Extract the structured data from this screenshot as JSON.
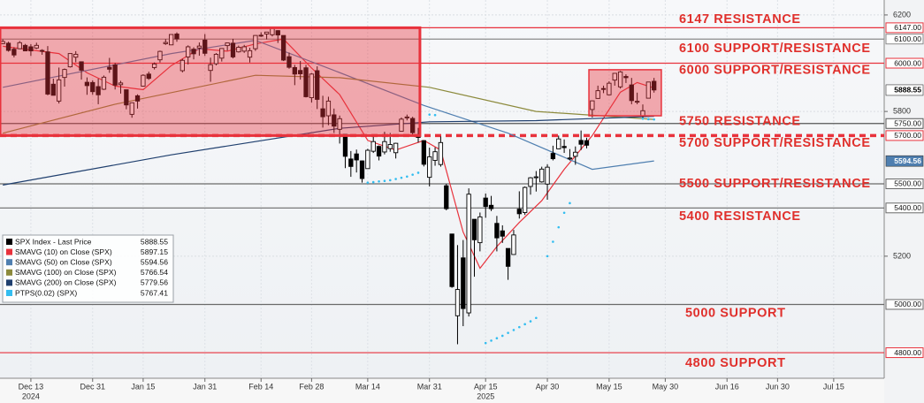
{
  "chart_data": {
    "type": "candlestick",
    "xlim": [
      -0.5,
      157
    ],
    "ylim": [
      4694,
      6262
    ],
    "yticks": [
      5200,
      5800,
      6200
    ],
    "xticks": [
      {
        "value": 5,
        "label": "Dec 13"
      },
      {
        "value": 16,
        "label": "Dec 31"
      },
      {
        "value": 25,
        "label": "Jan 15"
      },
      {
        "value": 36,
        "label": "Jan 31"
      },
      {
        "value": 46,
        "label": "Feb 14"
      },
      {
        "value": 55,
        "label": "Feb 28"
      },
      {
        "value": 65,
        "label": "Mar 14"
      },
      {
        "value": 76,
        "label": "Mar 31"
      },
      {
        "value": 86,
        "label": "Apr 15"
      },
      {
        "value": 97,
        "label": "Apr 30"
      },
      {
        "value": 108,
        "label": "May 15"
      },
      {
        "value": 118,
        "label": "May 30"
      },
      {
        "value": 129,
        "label": "Jun 16"
      },
      {
        "value": 138,
        "label": "Jun 30"
      },
      {
        "value": 148,
        "label": "Jul 15"
      }
    ],
    "year_labels": [
      {
        "value": 5,
        "label": "2024"
      },
      {
        "value": 86,
        "label": "2025"
      }
    ],
    "grid": true,
    "candles": {
      "name": "SPX Index - Last Price",
      "color": "#000000",
      "last": 5888.55,
      "open": [
        6081,
        6083,
        6058,
        6060,
        6074,
        6068,
        6063,
        6053,
        6047,
        5913,
        5843,
        5941,
        5985,
        6025,
        6006,
        5921,
        5920,
        5903,
        5892,
        5983,
        5993,
        5911,
        5890,
        5788,
        5865,
        5905,
        5955,
        5982,
        6014,
        6081,
        6076,
        6121,
        5969,
        6026,
        6058,
        6063,
        6096,
        5970,
        5998,
        6021,
        6073,
        6083,
        6047,
        6050,
        6025,
        6060,
        6116,
        6121,
        6118,
        6135,
        6115,
        6027,
        5982,
        5970,
        5981,
        5857,
        5969,
        5811,
        5782,
        5786,
        5726,
        5705,
        5603,
        5624,
        5595,
        5563,
        5635,
        5655,
        5632,
        5646,
        5629,
        5718,
        5776,
        5771,
        5696,
        5679,
        5527,
        5597,
        5580,
        5492,
        5292,
        4953,
        5193,
        4965,
        5353,
        5256,
        5441,
        5411,
        5336,
        5305,
        5232,
        5207,
        5395,
        5381,
        5489,
        5529,
        5508,
        5499,
        5626,
        5645,
        5655,
        5606,
        5614,
        5680,
        5679,
        5808,
        5854,
        5895,
        5869,
        5930,
        5902,
        5945,
        5910,
        5841,
        5782,
        5855,
        5925
      ],
      "high": [
        6099,
        6089,
        6066,
        6092,
        6080,
        6079,
        6085,
        6058,
        6071,
        5936,
        5982,
        5978,
        6041,
        6050,
        6007,
        5941,
        5929,
        5936,
        5949,
        6022,
        6001,
        5927,
        5890,
        5837,
        5871,
        5954,
        5965,
        6003,
        6052,
        6100,
        6119,
        6128,
        6018,
        6074,
        6066,
        6086,
        6121,
        6023,
        6042,
        6062,
        6084,
        6101,
        6073,
        6076,
        6064,
        6116,
        6128,
        6129,
        6147,
        6137,
        6115,
        6044,
        5993,
        6009,
        5993,
        5959,
        5987,
        5865,
        5861,
        5812,
        5783,
        5705,
        5636,
        5642,
        5597,
        5645,
        5704,
        5659,
        5716,
        5711,
        5670,
        5775,
        5787,
        5778,
        5732,
        5679,
        5650,
        5651,
        5696,
        5500,
        5292,
        5246,
        5267,
        5481,
        5353,
        5381,
        5460,
        5450,
        5367,
        5328,
        5232,
        5309,
        5469,
        5489,
        5528,
        5553,
        5571,
        5581,
        5658,
        5700,
        5684,
        5644,
        5655,
        5721,
        5691,
        5845,
        5907,
        5907,
        5925,
        5959,
        5968,
        5954,
        5939,
        5878,
        5829,
        5922,
        5939
      ],
      "low": [
        6079,
        6048,
        6024,
        6058,
        6051,
        6030,
        6059,
        6035,
        5867,
        5866,
        5833,
        5903,
        5982,
        6004,
        5932,
        5869,
        5869,
        5830,
        5889,
        5960,
        5891,
        5874,
        5809,
        5774,
        5812,
        5903,
        5931,
        5974,
        6003,
        6076,
        6075,
        6089,
        5962,
        5995,
        6016,
        6031,
        6030,
        5923,
        5991,
        6007,
        6052,
        6020,
        6044,
        6043,
        6003,
        6051,
        6109,
        6099,
        6111,
        6084,
        6009,
        5977,
        5909,
        5932,
        5858,
        5837,
        5810,
        5733,
        5743,
        5711,
        5667,
        5565,
        5529,
        5547,
        5505,
        5563,
        5628,
        5597,
        5622,
        5633,
        5605,
        5718,
        5763,
        5698,
        5671,
        5572,
        5489,
        5575,
        5571,
        5390,
        5069,
        4835,
        4910,
        4950,
        5115,
        5220,
        5359,
        5387,
        5220,
        5255,
        5102,
        5207,
        5356,
        5371,
        5455,
        5468,
        5505,
        5434,
        5597,
        5644,
        5628,
        5597,
        5579,
        5640,
        5647,
        5775,
        5853,
        5876,
        5867,
        5907,
        5895,
        5918,
        5830,
        5830,
        5768,
        5855,
        5878
      ],
      "close": [
        6090,
        6053,
        6034,
        6085,
        6051,
        6051,
        6074,
        6050,
        5872,
        5867,
        5931,
        5974,
        6040,
        6037,
        5971,
        5907,
        5882,
        5869,
        5942,
        5975,
        5909,
        5918,
        5827,
        5836,
        5843,
        5950,
        5937,
        5997,
        6049,
        6086,
        6119,
        6101,
        6012,
        6068,
        6039,
        6071,
        6041,
        5994,
        6037,
        6061,
        6084,
        6026,
        6066,
        6068,
        6052,
        6115,
        6115,
        6129,
        6144,
        6117,
        6013,
        5983,
        5955,
        5956,
        5861,
        5955,
        5850,
        5778,
        5843,
        5739,
        5770,
        5614,
        5572,
        5599,
        5522,
        5639,
        5675,
        5615,
        5675,
        5663,
        5668,
        5768,
        5777,
        5712,
        5693,
        5581,
        5612,
        5633,
        5671,
        5397,
        5074,
        5062,
        4983,
        5457,
        5268,
        5363,
        5406,
        5397,
        5276,
        5283,
        5158,
        5288,
        5376,
        5485,
        5525,
        5529,
        5561,
        5569,
        5604,
        5686,
        5650,
        5607,
        5631,
        5664,
        5660,
        5844,
        5886,
        5892,
        5917,
        5958,
        5964,
        5940,
        5845,
        5842,
        5803,
        5922,
        5889
      ]
    },
    "series": [
      {
        "name": "SMAVG (10)  on Close (SPX)",
        "color": "#e8323c",
        "last": 5897.15,
        "x": [
          0,
          10,
          15,
          20,
          25,
          30,
          35,
          40,
          45,
          50,
          55,
          60,
          65,
          70,
          75,
          78,
          82,
          85,
          88,
          92,
          96,
          100,
          105,
          110,
          113,
          116
        ],
        "values": [
          6070,
          6040,
          5960,
          5905,
          5890,
          5990,
          6060,
          6050,
          6080,
          6100,
          5980,
          5870,
          5680,
          5640,
          5680,
          5640,
          5300,
          5150,
          5240,
          5340,
          5430,
          5560,
          5700,
          5880,
          5920,
          5897
        ]
      },
      {
        "name": "SMAVG (50)  on Close (SPX)",
        "color": "#4f7fb0",
        "last": 5594.56,
        "x": [
          0,
          30,
          45,
          59,
          75,
          90,
          105,
          116
        ],
        "values": [
          5900,
          6040,
          6095,
          5970,
          5825,
          5710,
          5560,
          5595
        ]
      },
      {
        "name": "SMAVG (100)  on Close (SPX)",
        "color": "#8c8a3c",
        "last": 5766.54,
        "x": [
          0,
          20,
          45,
          60,
          76,
          95,
          116
        ],
        "values": [
          5710,
          5830,
          5950,
          5940,
          5900,
          5800,
          5767
        ]
      },
      {
        "name": "SMAVG (200)  on Close (SPX)",
        "color": "#1f3f6e",
        "last": 5779.56,
        "x": [
          0,
          30,
          60,
          76,
          95,
          116
        ],
        "values": [
          5495,
          5620,
          5730,
          5757,
          5762,
          5780
        ]
      }
    ],
    "ptps": {
      "name": "PTPS(0.02)  (SPX)",
      "color": "#33bdf0",
      "last": 5767.41,
      "x": [
        65,
        66,
        67,
        68,
        69,
        70,
        71,
        72,
        73,
        74,
        76,
        77,
        86,
        87,
        88,
        89,
        90,
        91,
        92,
        93,
        94,
        95,
        97,
        98,
        99,
        100,
        101,
        114,
        115,
        116
      ],
      "values": [
        5505,
        5507,
        5510,
        5512,
        5515,
        5520,
        5525,
        5530,
        5538,
        5546,
        5787,
        5785,
        4840,
        4850,
        4860,
        4870,
        4882,
        4894,
        4906,
        4918,
        4930,
        4944,
        5200,
        5260,
        5320,
        5380,
        5420,
        5770,
        5768,
        5767
      ]
    },
    "levels": [
      {
        "value": 6147,
        "label": "6147.00",
        "text": "6147 RESISTANCE",
        "color": "#e8323c"
      },
      {
        "value": 6100,
        "label": "6100.00",
        "text": "6100 SUPPORT/RESISTANCE",
        "color": "#8a8a8a"
      },
      {
        "value": 6000,
        "label": "6000.00",
        "text": "6000 SUPPORT/RESISTANCE",
        "color": "#e8323c"
      },
      {
        "value": 5750,
        "label": "5750.00",
        "text": "5750 RESISTANCE",
        "color": "#555555"
      },
      {
        "value": 5700,
        "label": "5700.00",
        "text": "5700 SUPPORT/RESISTANCE",
        "color": "#e8323c",
        "dashed": true
      },
      {
        "value": 5500,
        "label": "5500.00",
        "text": "5500 SUPPORT/RESISTANCE",
        "color": "#6a6a6a"
      },
      {
        "value": 5400,
        "label": "5400.00",
        "text": "5400 RESISTANCE",
        "color": "#6a6a6a"
      },
      {
        "value": 5000,
        "label": "5000.00",
        "text": "5000 SUPPORT",
        "color": "#6a6a6a"
      },
      {
        "value": 4800,
        "label": "4800.00",
        "text": "4800 SUPPORT",
        "color": "#e8323c"
      }
    ],
    "zones": [
      {
        "x0": -0.5,
        "x1": 74.3,
        "y0": 5700,
        "y1": 6147,
        "color": "#e8323c"
      },
      {
        "x0": 104.4,
        "x1": 117.3,
        "y0": 5782,
        "y1": 5973,
        "color": "#e8323c"
      }
    ]
  }
}
